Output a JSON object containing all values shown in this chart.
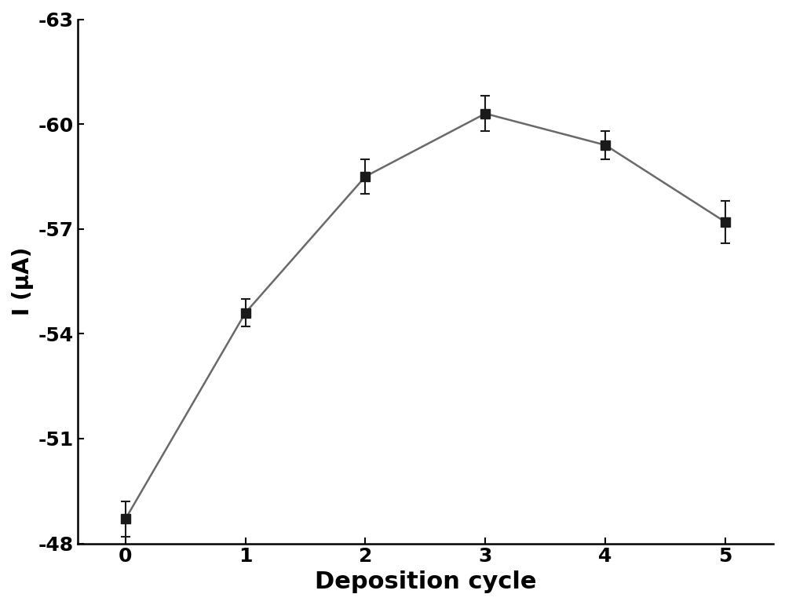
{
  "x": [
    0,
    1,
    2,
    3,
    4,
    5
  ],
  "y": [
    -48.7,
    -54.6,
    -58.5,
    -60.3,
    -59.4,
    -57.2
  ],
  "yerr": [
    0.5,
    0.4,
    0.5,
    0.5,
    0.4,
    0.6
  ],
  "xlabel": "Deposition cycle",
  "ylabel": "I (μA)",
  "xlim": [
    -0.4,
    5.4
  ],
  "ylim_bottom": -48,
  "ylim_top": -63,
  "yticks": [
    -48,
    -51,
    -54,
    -57,
    -60,
    -63
  ],
  "xticks": [
    0,
    1,
    2,
    3,
    4,
    5
  ],
  "line_color": "#696969",
  "marker_color": "#1a1a1a",
  "marker": "s",
  "marker_size": 8,
  "line_width": 1.8,
  "xlabel_fontsize": 22,
  "ylabel_fontsize": 20,
  "tick_fontsize": 18,
  "tick_label_fontweight": "bold",
  "label_fontweight": "bold",
  "background_color": "#ffffff",
  "capsize": 4,
  "elinewidth": 1.5,
  "capthick": 1.5
}
